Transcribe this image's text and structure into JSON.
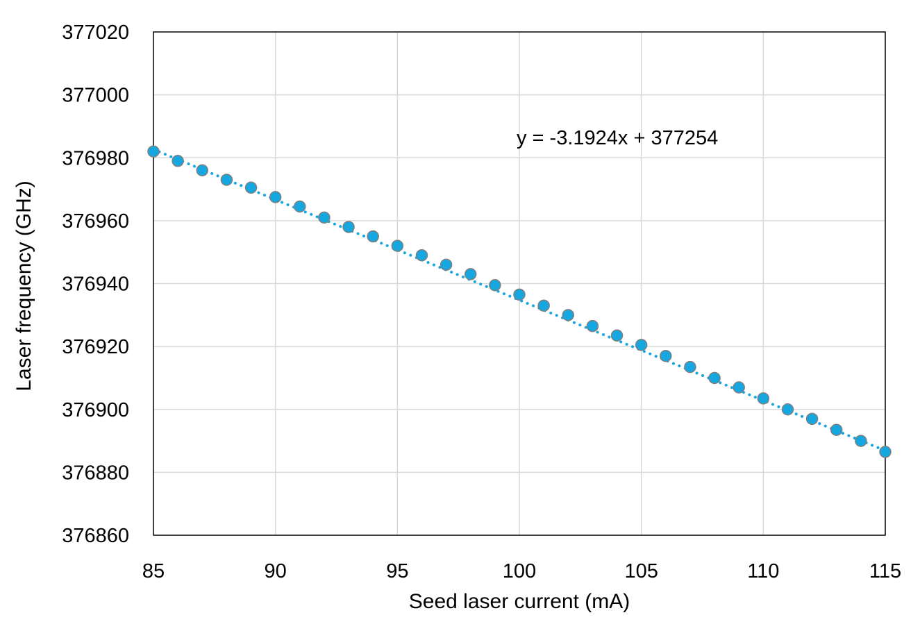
{
  "chart_data": {
    "type": "scatter",
    "title": "",
    "xlabel": "Seed laser current (mA)",
    "ylabel": "Laser frequency (GHz)",
    "xlim": [
      85,
      115
    ],
    "ylim": [
      376860,
      377020
    ],
    "xticks": [
      85,
      90,
      95,
      100,
      105,
      110,
      115
    ],
    "yticks": [
      376860,
      376880,
      376900,
      376920,
      376940,
      376960,
      376980,
      377000,
      377020
    ],
    "grid": true,
    "legend": "none",
    "series": [
      {
        "x": [
          85,
          86,
          87,
          88,
          89,
          90,
          91,
          92,
          93,
          94,
          95,
          96,
          97,
          98,
          99,
          100,
          101,
          102,
          103,
          104,
          105,
          106,
          107,
          108,
          109,
          110,
          111,
          112,
          113,
          114,
          115
        ],
        "y": [
          376982,
          376979,
          376976,
          376973,
          376970.5,
          376967.5,
          376964.5,
          376961,
          376958,
          376955,
          376952,
          376949,
          376946,
          376943,
          376939.5,
          376936.5,
          376933,
          376930,
          376926.5,
          376923.5,
          376920.5,
          376917,
          376913.5,
          376910,
          376907,
          376903.5,
          376900,
          376897,
          376893.5,
          376890,
          376886.5
        ],
        "color": "#17a7e0",
        "edge_color": "#7f7f7f"
      }
    ],
    "trendline": {
      "type": "linear",
      "slope": -3.1924,
      "intercept": 377254,
      "style": "dotted",
      "color": "#17a7e0",
      "equation": "y = -3.1924x + 377254"
    }
  }
}
